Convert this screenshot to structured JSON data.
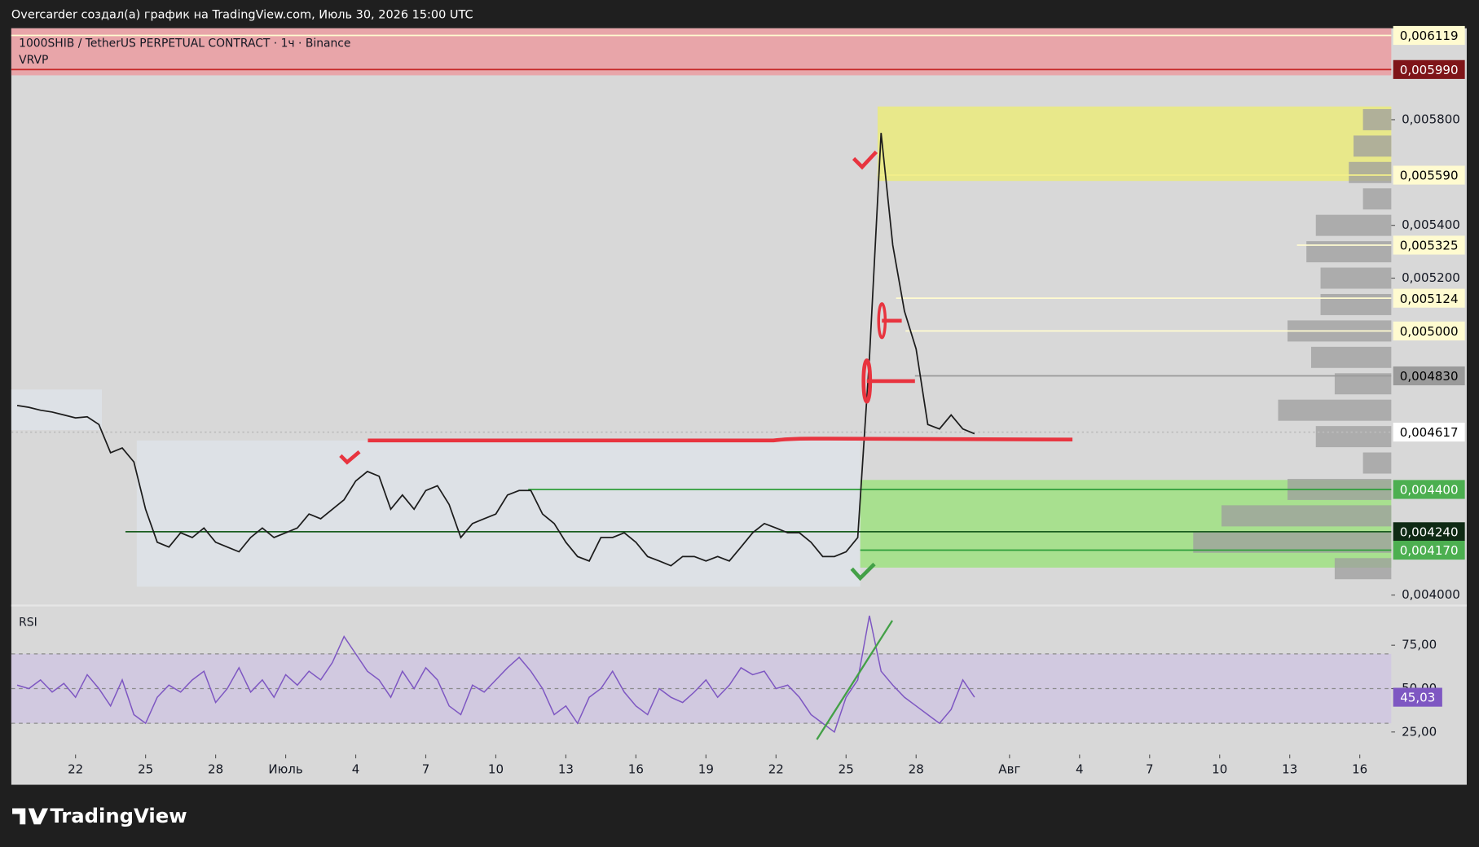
{
  "header": "Overcarder создал(а) график на TradingView.com, Июль 30, 2026 15:00 UTC",
  "footer": "TradingView",
  "chart_data": [
    {
      "type": "line",
      "title": "1000SHIB / TetherUS PERPETUAL CONTRACT · 1ч · Binance",
      "indicator": "VRVP",
      "color": "#1c1c1c",
      "values": [
        0.004718,
        0.004711,
        0.0047,
        0.004693,
        0.004682,
        0.004671,
        0.004675,
        0.004646,
        0.004539,
        0.004557,
        0.004504,
        0.004325,
        0.0042,
        0.004182,
        0.004236,
        0.004218,
        0.004254,
        0.0042,
        0.004182,
        0.004164,
        0.004218,
        0.004254,
        0.004218,
        0.004236,
        0.004254,
        0.004307,
        0.004289,
        0.004325,
        0.004361,
        0.004432,
        0.004468,
        0.00445,
        0.004325,
        0.004379,
        0.004325,
        0.004396,
        0.004414,
        0.004343,
        0.004218,
        0.004271,
        0.004289,
        0.004307,
        0.004379,
        0.004396,
        0.004396,
        0.004307,
        0.004271,
        0.0042,
        0.004146,
        0.004129,
        0.004218,
        0.004218,
        0.004236,
        0.0042,
        0.004146,
        0.004129,
        0.004111,
        0.004146,
        0.004146,
        0.004129,
        0.004146,
        0.004129,
        0.004182,
        0.004236,
        0.004271,
        0.004254,
        0.004236,
        0.004236,
        0.0042,
        0.004146,
        0.004146,
        0.004164,
        0.004218,
        0.004896,
        0.00575,
        0.005325,
        0.005075,
        0.004932,
        0.004646,
        0.004629,
        0.004682,
        0.004629,
        0.004611
      ],
      "xlim": [
        -0.5,
        117.7
      ],
      "ylim": [
        0.003964,
        0.006146
      ],
      "yticks": [
        {
          "value": 0.0058,
          "label": "0,005800"
        },
        {
          "value": 0.0054,
          "label": "0,005400"
        },
        {
          "value": 0.0052,
          "label": "0,005200"
        },
        {
          "value": 0.004,
          "label": "0,004000"
        }
      ],
      "levels": [
        {
          "value": 0.006119,
          "label": "0,006119",
          "color": "#fffbd0",
          "text_color": "#000000",
          "line_color": "#fffbd0"
        },
        {
          "value": 0.00599,
          "label": "0,005990",
          "color": "#7f1519",
          "text_color": "#ffffff",
          "line_color": "#c62828"
        },
        {
          "value": 0.00559,
          "label": "0,005590",
          "color": "#fffbd0",
          "text_color": "#000000",
          "line_color": "#f3ef8a"
        },
        {
          "value": 0.005325,
          "label": "0,005325",
          "color": "#fffbd0",
          "text_color": "#000000",
          "line_color": "#fffbd0"
        },
        {
          "value": 0.005124,
          "label": "0,005124",
          "color": "#fffbd0",
          "text_color": "#000000",
          "line_color": "#fffbd0"
        },
        {
          "value": 0.005,
          "label": "0,005000",
          "color": "#fffbd0",
          "text_color": "#000000",
          "line_color": "#fffbd0"
        },
        {
          "value": 0.00483,
          "label": "0,004830",
          "color": "#9a9a9a",
          "text_color": "#000000",
          "line_color": "#9a9a9a"
        },
        {
          "value": 0.004617,
          "label": "0,004617",
          "color": "#ffffff",
          "text_color": "#000000",
          "line_color": "#bdbdbd"
        },
        {
          "value": 0.0044,
          "label": "0,004400",
          "color": "#4caf50",
          "text_color": "#ffffff",
          "line_color": "#2e9e3a"
        },
        {
          "value": 0.00424,
          "label": "0,004240",
          "color": "#0f2a14",
          "text_color": "#ffffff",
          "line_color": "#1b5e20"
        },
        {
          "value": 0.00417,
          "label": "0,004170",
          "color": "#4caf50",
          "text_color": "#ffffff",
          "line_color": "#2e9e3a"
        }
      ],
      "zones": [
        {
          "xlim": [
            -0.5,
            117.7
          ],
          "ylim": [
            0.005968,
            0.006146
          ],
          "color": "#e8a5a9"
        },
        {
          "xlim": [
            73.7,
            117.7
          ],
          "ylim": [
            0.005568,
            0.00585
          ],
          "color": "#e8e88a"
        },
        {
          "xlim": [
            72.2,
            117.7
          ],
          "ylim": [
            0.004104,
            0.004436
          ],
          "color": "#a8e08f"
        }
      ],
      "volume_profile": {
        "prices": [
          0.0041,
          0.0042,
          0.0043,
          0.0044,
          0.0045,
          0.0046,
          0.0047,
          0.0048,
          0.0049,
          0.005,
          0.0051,
          0.0052,
          0.0053,
          0.0054,
          0.0055,
          0.0056,
          0.0057,
          0.0058
        ],
        "values": [
          60,
          210,
          180,
          110,
          30,
          80,
          120,
          60,
          85,
          110,
          75,
          75,
          90,
          80,
          30,
          45,
          40,
          30
        ],
        "color": "#9e9e9e"
      }
    },
    {
      "type": "line",
      "title": "RSI",
      "color": "#7e57c2",
      "values": [
        52,
        50,
        55,
        48,
        53,
        45,
        58,
        50,
        40,
        55,
        35,
        30,
        45,
        52,
        48,
        55,
        60,
        42,
        50,
        62,
        48,
        55,
        45,
        58,
        52,
        60,
        55,
        65,
        80,
        70,
        60,
        55,
        45,
        60,
        50,
        62,
        55,
        40,
        35,
        52,
        48,
        55,
        62,
        68,
        60,
        50,
        35,
        40,
        30,
        45,
        50,
        60,
        48,
        40,
        35,
        50,
        45,
        42,
        48,
        55,
        45,
        52,
        62,
        58,
        60,
        50,
        52,
        45,
        35,
        30,
        25,
        45,
        55,
        92,
        60,
        52,
        45,
        40,
        35,
        30,
        38,
        55,
        45.03
      ],
      "last_label": "45,03",
      "xlim": [
        -0.5,
        117.7
      ],
      "ylim": [
        12,
        97.3
      ],
      "yticks": [
        {
          "value": 75,
          "label": "75,00"
        },
        {
          "value": 50,
          "label": "50,00"
        },
        {
          "value": 25,
          "label": "25,00"
        }
      ],
      "levels": [
        70,
        50,
        30
      ],
      "band": [
        30,
        70
      ],
      "band_color": "#cfc6e2",
      "xticks": [
        {
          "value": 5,
          "label": "22"
        },
        {
          "value": 11,
          "label": "25"
        },
        {
          "value": 17,
          "label": "28"
        },
        {
          "value": 23,
          "label": "Июль"
        },
        {
          "value": 29,
          "label": "4"
        },
        {
          "value": 35,
          "label": "7"
        },
        {
          "value": 41,
          "label": "10"
        },
        {
          "value": 47,
          "label": "13"
        },
        {
          "value": 53,
          "label": "16"
        },
        {
          "value": 59,
          "label": "19"
        },
        {
          "value": 65,
          "label": "22"
        },
        {
          "value": 71,
          "label": "25"
        },
        {
          "value": 77,
          "label": "28"
        },
        {
          "value": 85,
          "label": "Авг"
        },
        {
          "value": 91,
          "label": "4"
        },
        {
          "value": 97,
          "label": "7"
        },
        {
          "value": 103,
          "label": "10"
        },
        {
          "value": 109,
          "label": "13"
        },
        {
          "value": 115,
          "label": "16"
        }
      ]
    }
  ]
}
